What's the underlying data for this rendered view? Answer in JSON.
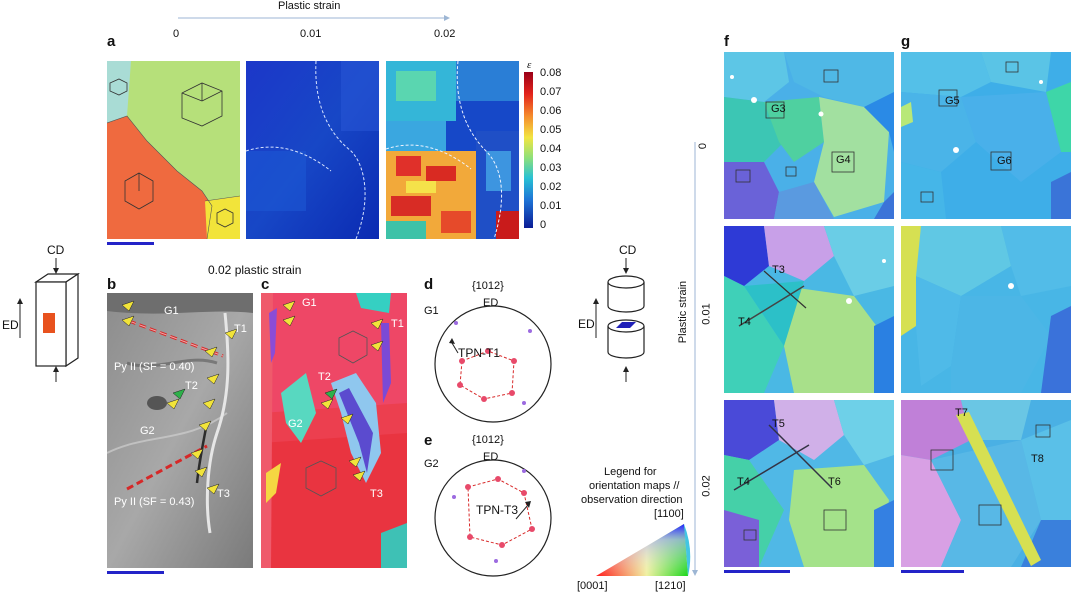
{
  "top": {
    "axis_title": "Plastic strain",
    "ticks": [
      "0",
      "0.01",
      "0.02"
    ]
  },
  "panels": {
    "a": "a",
    "b": "b",
    "c": "c",
    "d": "d",
    "e": "e",
    "f": "f",
    "g": "g"
  },
  "colorbar": {
    "symbol": "ε",
    "ticks": [
      "0.08",
      "0.07",
      "0.06",
      "0.05",
      "0.04",
      "0.03",
      "0.02",
      "0.01",
      "0"
    ]
  },
  "middle_title": "0.02 plastic strain",
  "left_diagram": {
    "cd": "CD",
    "ed": "ED"
  },
  "center_diagram": {
    "cd": "CD",
    "ed": "ED"
  },
  "panel_b": {
    "g1": "G1",
    "t1": "T1",
    "t2": "T2",
    "t3": "T3",
    "g2": "G2",
    "slip1": "Py II (SF = 0.40)",
    "slip2": "Py II (SF = 0.43)"
  },
  "panel_c": {
    "g1": "G1",
    "t1": "T1",
    "t2": "T2",
    "g2": "G2",
    "t3": "T3"
  },
  "panel_d": {
    "plane": "{1012}",
    "ed": "ED",
    "grain": "G1",
    "label": "TPN-T1"
  },
  "panel_e": {
    "plane": "{1012}",
    "ed": "ED",
    "grain": "G2",
    "label": "TPN-T3"
  },
  "right_axis": {
    "title": "Plastic strain",
    "ticks": [
      "0",
      "0.01",
      "0.02"
    ]
  },
  "legend": {
    "title1": "Legend for",
    "title2": "orientation maps //",
    "title3": "observation direction",
    "top": "[1100]",
    "left": "[0001]",
    "right": "[1210]"
  },
  "panel_f": {
    "g3": "G3",
    "g4": "G4",
    "t3": "T3",
    "t4": "T4",
    "t5": "T5",
    "t6": "T6",
    "t4b": "T4"
  },
  "panel_g": {
    "g5": "G5",
    "g6": "G6",
    "t7": "T7",
    "t8": "T8"
  },
  "colors": {
    "scalebar": "#2323c8",
    "strain_low": "#0a1a9c",
    "strain_high": "#a0001a"
  }
}
